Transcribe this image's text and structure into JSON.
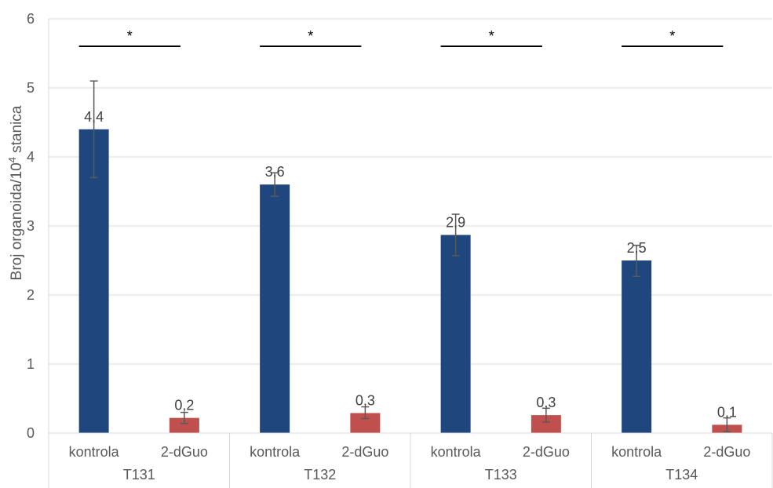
{
  "chart_data": {
    "type": "bar",
    "ylabel": "Broj organoida/10",
    "ylabel_sup": "4",
    "ylabel_tail": " stanica",
    "ylim": [
      0,
      6
    ],
    "yticks": [
      0,
      1,
      2,
      3,
      4,
      5,
      6
    ],
    "grid": true,
    "groups": [
      "T131",
      "T132",
      "T133",
      "T134"
    ],
    "categories": [
      "kontrola",
      "2-dGuo"
    ],
    "colors": {
      "kontrola": "#1f477d",
      "2-dGuo": "#c0504d"
    },
    "bars": [
      {
        "group": "T131",
        "category": "kontrola",
        "value": 4.4,
        "label": "4,4",
        "err_low": 3.7,
        "err_high": 5.1
      },
      {
        "group": "T131",
        "category": "2-dGuo",
        "value": 0.22,
        "label": "0,2",
        "err_low": 0.14,
        "err_high": 0.3
      },
      {
        "group": "T132",
        "category": "kontrola",
        "value": 3.6,
        "label": "3,6",
        "err_low": 3.43,
        "err_high": 3.77
      },
      {
        "group": "T132",
        "category": "2-dGuo",
        "value": 0.29,
        "label": "0,3",
        "err_low": 0.21,
        "err_high": 0.38
      },
      {
        "group": "T133",
        "category": "kontrola",
        "value": 2.87,
        "label": "2,9",
        "err_low": 2.57,
        "err_high": 3.17
      },
      {
        "group": "T133",
        "category": "2-dGuo",
        "value": 0.26,
        "label": "0,3",
        "err_low": 0.16,
        "err_high": 0.36
      },
      {
        "group": "T134",
        "category": "kontrola",
        "value": 2.5,
        "label": "2,5",
        "err_low": 2.27,
        "err_high": 2.72
      },
      {
        "group": "T134",
        "category": "2-dGuo",
        "value": 0.12,
        "label": "0,1",
        "err_low": 0.02,
        "err_high": 0.22
      }
    ],
    "significance": [
      {
        "group": "T131",
        "label": "*"
      },
      {
        "group": "T132",
        "label": "*"
      },
      {
        "group": "T133",
        "label": "*"
      },
      {
        "group": "T134",
        "label": "*"
      }
    ]
  }
}
